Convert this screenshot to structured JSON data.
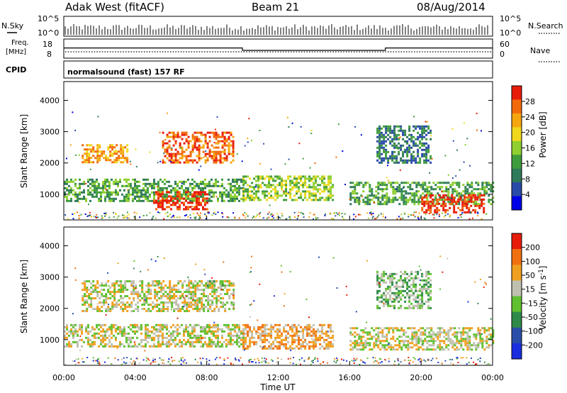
{
  "header": {
    "station": "Adak West (fitACF)",
    "beam": "Beam 21",
    "date": "08/Aug/2014"
  },
  "top_panels": {
    "nsky_label": "N.Sky",
    "nsearch_label": "N.Search",
    "count_tick_hi": "10^5",
    "count_tick_lo": "10^0",
    "freq_label_1": "Freq.",
    "freq_label_2": "[MHz]",
    "freq_ticks": [
      "18",
      "8"
    ],
    "nave_label": "Nave",
    "nave_ticks": [
      "60",
      "0"
    ],
    "cpid_label": "CPID",
    "cpid_text": "normalsound (fast) 157 RF"
  },
  "axes": {
    "ylabel": "Slant Range [km]",
    "xlabel": "Time UT",
    "y_ticks": [
      "4000",
      "3000",
      "2000",
      "1000"
    ],
    "x_ticks": [
      "00:00",
      "04:00",
      "08:00",
      "12:00",
      "16:00",
      "20:00",
      "00:00"
    ]
  },
  "chart_data": [
    {
      "type": "heatmap",
      "panel": "power",
      "xlabel": "Time UT",
      "ylabel": "Slant Range [km]",
      "x_range_hours": [
        0,
        24
      ],
      "ylim": [
        180,
        4600
      ],
      "colorbar": {
        "label": "Power [dB]",
        "ticks": [
          "28",
          "24",
          "20",
          "16",
          "12",
          "8",
          "4"
        ],
        "colors": [
          "#0000e6",
          "#2a4aa8",
          "#2f7a5a",
          "#3f9c3c",
          "#8fcf2f",
          "#f0d81c",
          "#f5a60f",
          "#f26a0a",
          "#e81c0a"
        ]
      },
      "regions": [
        {
          "t0": 0.0,
          "t1": 10.0,
          "r0": 800,
          "r1": 1500,
          "level": 3
        },
        {
          "t0": 5.0,
          "t1": 8.0,
          "r0": 500,
          "r1": 1100,
          "level": 8
        },
        {
          "t0": 1.0,
          "t1": 3.5,
          "r0": 2000,
          "r1": 2600,
          "level": 6
        },
        {
          "t0": 5.5,
          "t1": 9.5,
          "r0": 2000,
          "r1": 3000,
          "level": 7
        },
        {
          "t0": 10.0,
          "t1": 15.0,
          "r0": 800,
          "r1": 1600,
          "level": 4
        },
        {
          "t0": 16.0,
          "t1": 24.0,
          "r0": 700,
          "r1": 1400,
          "level": 3
        },
        {
          "t0": 20.0,
          "t1": 23.5,
          "r0": 400,
          "r1": 1000,
          "level": 8
        },
        {
          "t0": 17.5,
          "t1": 20.5,
          "r0": 2000,
          "r1": 3200,
          "level": 2
        }
      ]
    },
    {
      "type": "heatmap",
      "panel": "velocity",
      "xlabel": "Time UT",
      "ylabel": "Slant Range [km]",
      "x_range_hours": [
        0,
        24
      ],
      "ylim": [
        180,
        4600
      ],
      "colorbar": {
        "label": "Velocity [m s^-1]",
        "ticks": [
          "200",
          "100",
          "50",
          "15",
          "-15",
          "-50",
          "-100",
          "-200"
        ],
        "colors": [
          "#1a2ee0",
          "#2a4ea8",
          "#2f8a4a",
          "#60c030",
          "#c0c0b0",
          "#f0a020",
          "#f07010",
          "#e81c0a"
        ]
      },
      "regions": [
        {
          "t0": 0.0,
          "t1": 10.0,
          "r0": 800,
          "r1": 1500,
          "level": 4
        },
        {
          "t0": 1.0,
          "t1": 9.5,
          "r0": 1900,
          "r1": 2900,
          "level": 4
        },
        {
          "t0": 10.0,
          "t1": 15.0,
          "r0": 700,
          "r1": 1500,
          "level": 5
        },
        {
          "t0": 16.0,
          "t1": 24.0,
          "r0": 700,
          "r1": 1400,
          "level": 4
        },
        {
          "t0": 8.0,
          "t1": 9.0,
          "r0": 2700,
          "r1": 2900,
          "level": 3
        },
        {
          "t0": 17.5,
          "t1": 20.5,
          "r0": 2000,
          "r1": 3200,
          "level": 3
        }
      ]
    }
  ],
  "freq_series": {
    "levels_mhz": [
      [
        0,
        12.5
      ],
      [
        10,
        10.5
      ],
      [
        18,
        12.5
      ],
      [
        24,
        12.5
      ]
    ]
  }
}
